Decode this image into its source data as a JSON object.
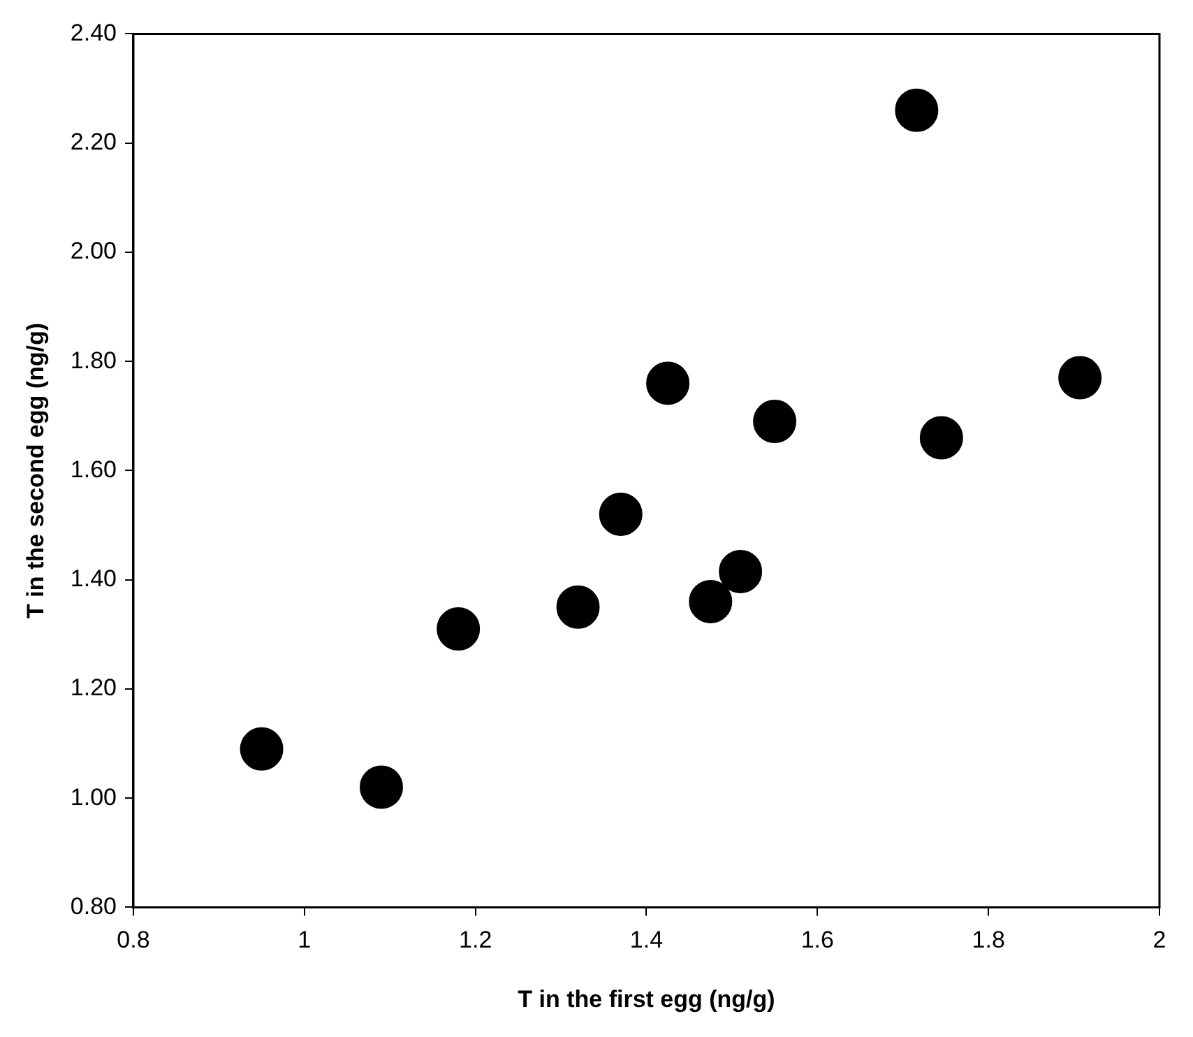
{
  "chart_data": {
    "type": "scatter",
    "xlabel": "T in the first egg (ng/g)",
    "ylabel": "T in the second egg (ng/g)",
    "x": [
      0.95,
      1.09,
      1.18,
      1.32,
      1.37,
      1.425,
      1.475,
      1.51,
      1.55,
      1.716,
      1.745,
      1.907
    ],
    "series": [
      {
        "color": "#000000",
        "values": [
          1.09,
          1.02,
          1.31,
          1.35,
          1.52,
          1.76,
          1.36,
          1.415,
          1.69,
          2.26,
          1.66,
          1.77
        ]
      }
    ],
    "xlim": [
      0.8,
      2
    ],
    "xticks": [
      0.8,
      1,
      1.2,
      1.4,
      1.6,
      1.8,
      2
    ],
    "ylim": [
      0.8,
      2.4
    ],
    "yticks": [
      {
        "value": 0.8,
        "label": "0.80"
      },
      {
        "value": 1,
        "label": "1.00"
      },
      {
        "value": 1.2,
        "label": "1.20"
      },
      {
        "value": 1.4,
        "label": "1.40"
      },
      {
        "value": 1.6,
        "label": "1.60"
      },
      {
        "value": 1.8,
        "label": "1.80"
      },
      {
        "value": 2,
        "label": "2.00"
      },
      {
        "value": 2.2,
        "label": "2.20"
      },
      {
        "value": 2.4,
        "label": "2.40"
      }
    ],
    "grid": false,
    "legend": false,
    "marker": "circle"
  }
}
